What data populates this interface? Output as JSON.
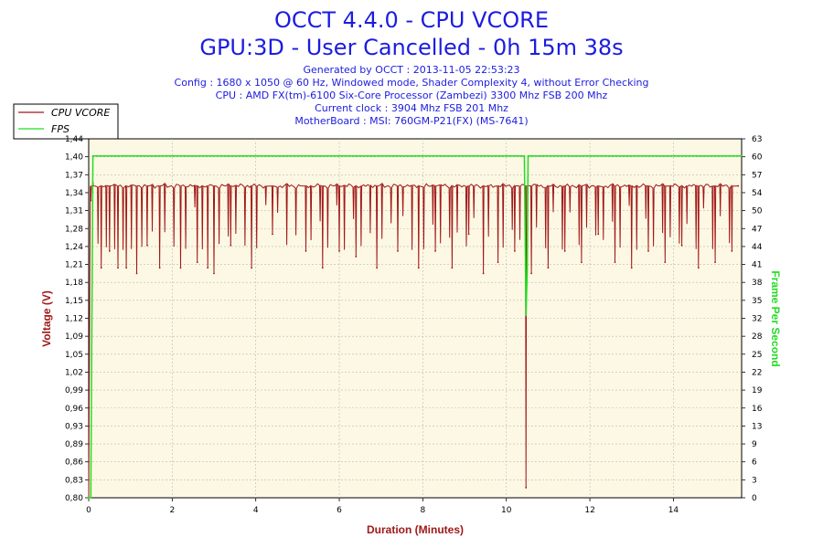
{
  "header": {
    "title_line1": "OCCT 4.4.0 - CPU VCORE",
    "title_line2": "GPU:3D - User Cancelled - 0h 15m 38s",
    "info_lines": [
      "Generated by OCCT : 2013-11-05 22:53:23",
      "Config : 1680 x 1050 @ 60 Hz, Windowed mode, Shader Complexity 4, without Error Checking",
      "CPU : AMD FX(tm)-6100 Six-Core Processor (Zambezi) 3300 Mhz FSB 200 Mhz",
      "Current clock : 3904 Mhz FSB 201 Mhz",
      "MotherBoard : MSI: 760GM-P21(FX) (MS-7641)"
    ]
  },
  "colors": {
    "vcore": "#a01818",
    "fps": "#22dd22",
    "plot_bg": "#fdf8e4",
    "grid": "#b8b8b8",
    "title": "#1c1ce0",
    "left_axis_title": "#a01818",
    "right_axis_title": "#22dd22",
    "x_axis_title": "#a01818"
  },
  "chart_data": {
    "type": "line",
    "title": "OCCT 4.4.0 - CPU VCORE",
    "xlabel": "Duration (Minutes)",
    "ylabel": "Voltage (V)",
    "y2label": "Frame Per Second",
    "xlim": [
      0,
      15.633
    ],
    "ylim": [
      0.8,
      1.44
    ],
    "y2lim": [
      0,
      63
    ],
    "x_ticks": [
      "0",
      "2",
      "4",
      "6",
      "8",
      "10",
      "12",
      "14"
    ],
    "x_tick_values": [
      0,
      2,
      4,
      6,
      8,
      10,
      12,
      14
    ],
    "y_ticks": [
      "1,44",
      "1,40",
      "1,37",
      "1,34",
      "1,31",
      "1,28",
      "1,24",
      "1,21",
      "1,18",
      "1,15",
      "1,12",
      "1,09",
      "1,05",
      "1,02",
      "0,99",
      "0,96",
      "0,93",
      "0,89",
      "0,86",
      "0,83",
      "0,80"
    ],
    "y2_ticks": [
      "63",
      "60",
      "57",
      "54",
      "50",
      "47",
      "44",
      "41",
      "38",
      "35",
      "32",
      "28",
      "25",
      "22",
      "19",
      "16",
      "13",
      "9",
      "6",
      "3",
      "0"
    ],
    "grid": true,
    "legend_position": "top-left",
    "series": [
      {
        "name": "CPU VCORE",
        "axis": "left",
        "baseline": 1.356,
        "points": [
          {
            "x": 0.0,
            "y": 0.8
          },
          {
            "x": 0.05,
            "y": 1.33
          },
          {
            "x": 0.1,
            "y": 1.362
          },
          {
            "x": 0.3,
            "y": 1.21
          },
          {
            "x": 0.5,
            "y": 1.24
          },
          {
            "x": 0.7,
            "y": 1.21
          },
          {
            "x": 0.9,
            "y": 1.21
          },
          {
            "x": 1.15,
            "y": 1.2
          },
          {
            "x": 1.4,
            "y": 1.25
          },
          {
            "x": 1.7,
            "y": 1.21
          },
          {
            "x": 2.2,
            "y": 1.21
          },
          {
            "x": 2.6,
            "y": 1.22
          },
          {
            "x": 2.85,
            "y": 1.21
          },
          {
            "x": 3.0,
            "y": 1.2
          },
          {
            "x": 3.4,
            "y": 1.25
          },
          {
            "x": 3.9,
            "y": 1.21
          },
          {
            "x": 4.4,
            "y": 1.27
          },
          {
            "x": 5.2,
            "y": 1.24
          },
          {
            "x": 5.6,
            "y": 1.21
          },
          {
            "x": 6.0,
            "y": 1.24
          },
          {
            "x": 6.4,
            "y": 1.23
          },
          {
            "x": 6.9,
            "y": 1.21
          },
          {
            "x": 7.4,
            "y": 1.24
          },
          {
            "x": 7.9,
            "y": 1.21
          },
          {
            "x": 8.3,
            "y": 1.24
          },
          {
            "x": 8.7,
            "y": 1.21
          },
          {
            "x": 9.1,
            "y": 1.27
          },
          {
            "x": 9.45,
            "y": 1.2
          },
          {
            "x": 9.8,
            "y": 1.22
          },
          {
            "x": 10.2,
            "y": 1.24
          },
          {
            "x": 10.47,
            "y": 0.818
          },
          {
            "x": 10.6,
            "y": 1.2
          },
          {
            "x": 11.0,
            "y": 1.21
          },
          {
            "x": 11.4,
            "y": 1.24
          },
          {
            "x": 11.8,
            "y": 1.22
          },
          {
            "x": 12.2,
            "y": 1.27
          },
          {
            "x": 12.6,
            "y": 1.22
          },
          {
            "x": 13.0,
            "y": 1.21
          },
          {
            "x": 13.4,
            "y": 1.24
          },
          {
            "x": 13.8,
            "y": 1.22
          },
          {
            "x": 14.2,
            "y": 1.25
          },
          {
            "x": 14.6,
            "y": 1.21
          },
          {
            "x": 15.0,
            "y": 1.22
          },
          {
            "x": 15.4,
            "y": 1.24
          },
          {
            "x": 15.55,
            "y": 1.356
          }
        ]
      },
      {
        "name": "FPS",
        "axis": "right",
        "points": [
          {
            "x": 0.0,
            "y": 0
          },
          {
            "x": 0.05,
            "y": 0
          },
          {
            "x": 0.1,
            "y": 60
          },
          {
            "x": 10.43,
            "y": 60
          },
          {
            "x": 10.47,
            "y": 32
          },
          {
            "x": 10.5,
            "y": 40
          },
          {
            "x": 10.52,
            "y": 60
          },
          {
            "x": 15.633,
            "y": 60
          }
        ]
      }
    ]
  }
}
